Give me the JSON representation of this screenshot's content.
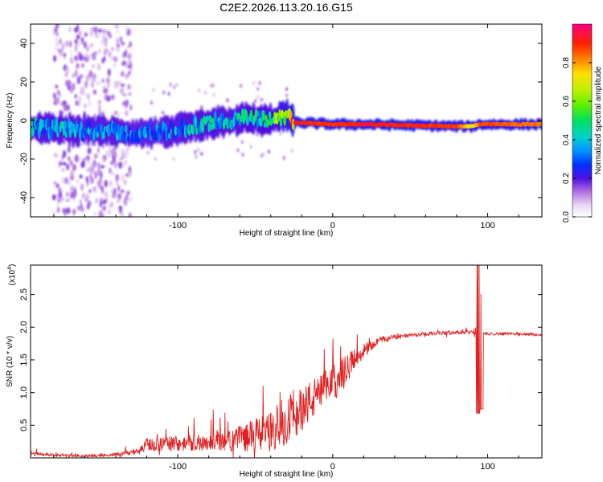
{
  "figure": {
    "title": "C2E2.2026.113.20.16.G15"
  },
  "chart_data": [
    {
      "type": "heatmap",
      "title": "C2E2.2026.113.20.16.G15",
      "xlabel": "Height of straight line (km)",
      "ylabel": "Frequency (Hz)",
      "xlim": [
        -195,
        135
      ],
      "ylim": [
        -50,
        50
      ],
      "x_ticks": [
        -100,
        0,
        100
      ],
      "x_tick_labels": [
        "-100",
        "0",
        "100"
      ],
      "y_ticks": [
        -40,
        -20,
        0,
        20,
        40
      ],
      "y_tick_labels": [
        "-40",
        "-20",
        "0",
        "20",
        "40"
      ],
      "colorbar": {
        "label": "Normalized spectral amplitude",
        "range": [
          0.0,
          1.0
        ],
        "ticks": [
          0.0,
          0.2,
          0.4,
          0.6,
          0.8
        ],
        "tick_labels": [
          "0.0",
          "0.2",
          "0.4",
          "0.6",
          "0.8"
        ]
      },
      "ridge": {
        "description_points_x": [
          -195,
          -150,
          -130,
          -110,
          -90,
          -70,
          -55,
          -40,
          -30,
          -25,
          0,
          20,
          80,
          90,
          95,
          135
        ],
        "frequency_hz": [
          -4,
          -5,
          -7,
          -6,
          -3,
          0,
          1,
          0,
          3,
          -1,
          -2,
          -2,
          -3,
          -3,
          -2,
          -2
        ],
        "amplitude": [
          0.45,
          0.4,
          0.35,
          0.35,
          0.45,
          0.45,
          0.5,
          0.5,
          0.75,
          0.95,
          0.9,
          0.95,
          0.9,
          0.7,
          0.9,
          0.85
        ]
      },
      "grid": false,
      "legend": "colorbar-right"
    },
    {
      "type": "line",
      "title": "",
      "xlabel": "Height of straight line (km)",
      "ylabel": "SNR (10 * v/v)",
      "y_multiplier": "(x10",
      "y_multiplier_exponent": "4",
      "y_multiplier_close": ")",
      "xlim": [
        -195,
        135
      ],
      "ylim": [
        0,
        2.95
      ],
      "x_ticks": [
        -100,
        0,
        100
      ],
      "x_tick_labels": [
        "-100",
        "0",
        "100"
      ],
      "y_ticks": [
        0.5,
        1.0,
        1.5,
        2.0,
        2.5
      ],
      "y_tick_labels": [
        "0.5",
        "1.0",
        "1.5",
        "2.0",
        "2.5"
      ],
      "series_color": "#e02020",
      "envelope": {
        "x": [
          -195,
          -180,
          -160,
          -140,
          -125,
          -120,
          -100,
          -80,
          -60,
          -50,
          -40,
          -30,
          -20,
          -10,
          0,
          10,
          20,
          30,
          40,
          60,
          80,
          90,
          95,
          97,
          100,
          110,
          120,
          135
        ],
        "mean": [
          0.08,
          0.04,
          0.03,
          0.05,
          0.1,
          0.2,
          0.22,
          0.25,
          0.3,
          0.35,
          0.4,
          0.6,
          0.75,
          0.95,
          1.15,
          1.4,
          1.65,
          1.8,
          1.85,
          1.9,
          1.92,
          1.93,
          1.95,
          1.9,
          1.9,
          1.9,
          1.9,
          1.88
        ],
        "spread": [
          0.03,
          0.02,
          0.02,
          0.03,
          0.05,
          0.1,
          0.12,
          0.14,
          0.2,
          0.25,
          0.3,
          0.4,
          0.35,
          0.3,
          0.28,
          0.22,
          0.1,
          0.06,
          0.04,
          0.03,
          0.03,
          0.03,
          0.25,
          0.02,
          0.02,
          0.02,
          0.02,
          0.02
        ]
      },
      "spike": {
        "x": 95,
        "max": 2.95,
        "min": 0.68
      },
      "grid": false,
      "legend": "none"
    }
  ]
}
